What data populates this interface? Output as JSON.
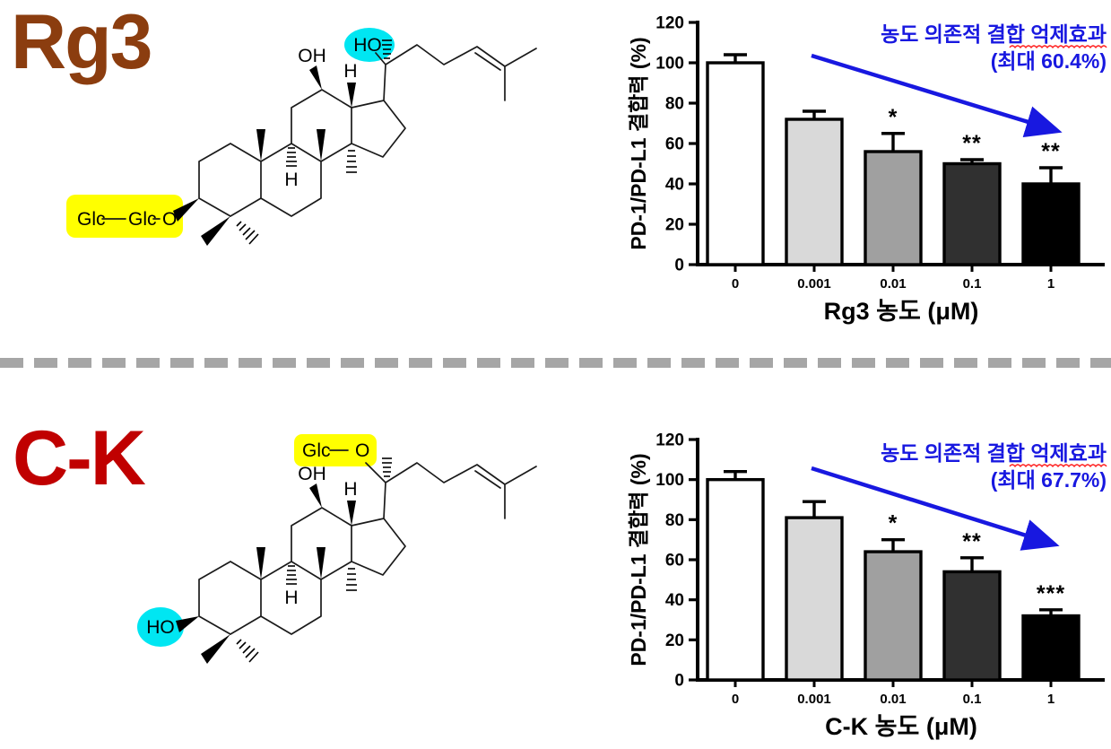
{
  "page": {
    "background": "#FFFFFF"
  },
  "divider": {
    "color": "#A6A6A6",
    "style": "dashed"
  },
  "panels": [
    {
      "compound": "Rg3",
      "label_color": "#8B3D0F",
      "structure": {
        "sugar_labels": {
          "glc1": "Glc",
          "glc2": "Glc",
          "o": "O"
        },
        "c20_hydroxyl": "HO",
        "c12_hydroxyl": "OH",
        "stereo_h_1": "H",
        "stereo_h_2": "H",
        "highlight_yellow": "#FFFF00",
        "highlight_cyan": "#00E6F2"
      }
    },
    {
      "compound": "C-K",
      "label_color": "#C00000",
      "structure": {
        "sugar_labels": {
          "glc": "Glc",
          "o": "O"
        },
        "c3_hydroxyl": "HO",
        "c12_hydroxyl": "OH",
        "stereo_h_1": "H",
        "stereo_h_2": "H",
        "highlight_yellow": "#FFFF00",
        "highlight_cyan": "#00E6F2"
      }
    }
  ],
  "chart_data": [
    {
      "type": "bar",
      "title": "",
      "xlabel": "Rg3 농도 (μM)",
      "ylabel": "PD-1/PD-L1 결합력 (%)",
      "categories": [
        "0",
        "0.001",
        "0.01",
        "0.1",
        "1"
      ],
      "values": [
        100,
        72,
        56,
        50,
        40
      ],
      "errors_upper": [
        4,
        4,
        9,
        2,
        8
      ],
      "significance": [
        "",
        "",
        "*",
        "**",
        "**"
      ],
      "bar_fills": [
        "#FFFFFF",
        "#D9D9D9",
        "#A0A0A0",
        "#303030",
        "#000000"
      ],
      "bar_stroke": "#000000",
      "ylim": [
        0,
        120
      ],
      "ytick_interval": 20,
      "grid": false,
      "legend": false,
      "annotation": {
        "line1": "농도 의존적 결합 억제효과",
        "line2": "(최대 60.4%)",
        "max_inhibition_pct": 60.4,
        "color": "#1818E0",
        "arrow": "down-right trend arrow"
      }
    },
    {
      "type": "bar",
      "title": "",
      "xlabel": "C-K 농도 (μM)",
      "ylabel": "PD-1/PD-L1 결합력 (%)",
      "categories": [
        "0",
        "0.001",
        "0.01",
        "0.1",
        "1"
      ],
      "values": [
        100,
        81,
        64,
        54,
        32
      ],
      "errors_upper": [
        4,
        8,
        6,
        7,
        3
      ],
      "significance": [
        "",
        "",
        "*",
        "**",
        "***"
      ],
      "bar_fills": [
        "#FFFFFF",
        "#D9D9D9",
        "#A0A0A0",
        "#303030",
        "#000000"
      ],
      "bar_stroke": "#000000",
      "ylim": [
        0,
        120
      ],
      "ytick_interval": 20,
      "grid": false,
      "legend": false,
      "annotation": {
        "line1": "농도 의존적 결합 억제효과",
        "line2": "(최대 67.7%)",
        "max_inhibition_pct": 67.7,
        "color": "#1818E0",
        "arrow": "down-right trend arrow"
      }
    }
  ]
}
